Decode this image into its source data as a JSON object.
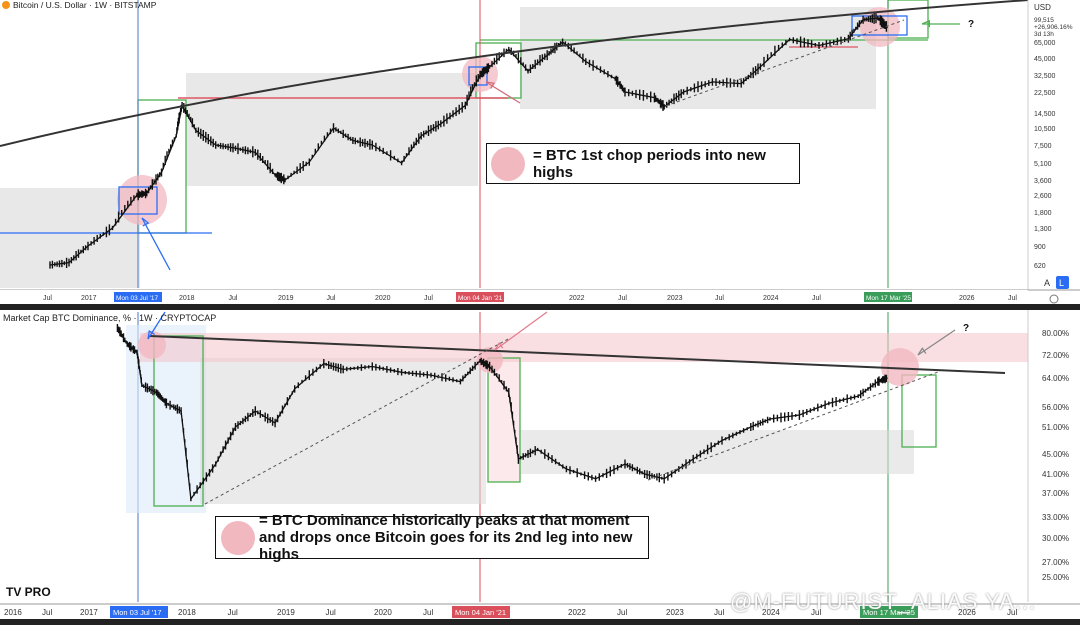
{
  "top_panel": {
    "legend": "Bitcoin / U.S. Dollar · 1W · BITSTAMP",
    "currency": "USD",
    "price_readout": [
      "99,515",
      "+26,906.16%",
      "3d 13h"
    ],
    "question_mark": "?",
    "auto_button": "A",
    "log_button": "L",
    "note": "= BTC 1st chop periods into new highs"
  },
  "bottom_panel": {
    "legend": "Market Cap BTC Dominance, % · 1W · CRYPTOCAP",
    "question_mark": "?",
    "note_line1": "= BTC Dominance historically peaks at that moment",
    "note_line2": "and drops once Bitcoin goes for its 2nd leg into new highs"
  },
  "bottom_toolbar": {
    "logo": "TV PRO"
  },
  "watermark": "@M-FUTURIST_ALIAS YA...",
  "colors": {
    "candle": "#111111",
    "trendline": "#333333",
    "range_box": "#d9d9d9",
    "red_line": "#e05565",
    "blue_line": "#2a6df4",
    "green_box": "#4caf50",
    "pink_zone": "#f4c3cb",
    "highlight_circle": "#f2b8c0",
    "vline_blue": "#4a78c8",
    "vline_red": "#d94f5c",
    "vline_green": "#3a9e5a"
  },
  "chart_data": [
    {
      "type": "line",
      "title": "Bitcoin / U.S. Dollar · 1W · BITSTAMP",
      "scale": "log",
      "y_tick_labels": [
        "65,000",
        "45,000",
        "32,500",
        "22,500",
        "14,500",
        "10,500",
        "7,500",
        "5,100",
        "3,600",
        "2,600",
        "1,800",
        "1,300",
        "900",
        "620"
      ],
      "x_tick_labels": [
        "Jul",
        "2017",
        "2018",
        "Jul",
        "2019",
        "Jul",
        "2020",
        "Jul",
        "2022",
        "Jul",
        "2023",
        "Jul",
        "2024",
        "Jul",
        "2026",
        "Jul"
      ],
      "axis_date_labels": [
        "Mon 03 Jul '17",
        "Mon 04 Jan '21",
        "Mon 17 Mar '25"
      ],
      "x": [
        2016.5,
        2016.75,
        2017.0,
        2017.25,
        2017.5,
        2017.6,
        2017.75,
        2017.9,
        2017.96,
        2018.1,
        2018.3,
        2018.5,
        2018.7,
        2018.9,
        2019.0,
        2019.25,
        2019.5,
        2019.7,
        2019.9,
        2020.2,
        2020.4,
        2020.6,
        2020.85,
        2021.0,
        2021.1,
        2021.3,
        2021.5,
        2021.7,
        2021.86,
        2022.1,
        2022.4,
        2022.5,
        2022.8,
        2022.9,
        2023.1,
        2023.4,
        2023.7,
        2023.9,
        2024.2,
        2024.5,
        2024.8,
        2024.95,
        2025.1,
        2025.2
      ],
      "y": [
        620,
        650,
        900,
        1300,
        2600,
        2700,
        4200,
        9000,
        17000,
        10000,
        7500,
        7000,
        6400,
        4000,
        3600,
        5200,
        10500,
        8200,
        7500,
        5100,
        9000,
        11500,
        17000,
        32500,
        38000,
        55000,
        35000,
        48000,
        65000,
        42000,
        30000,
        22500,
        20000,
        16500,
        22500,
        28000,
        27000,
        38000,
        68000,
        60000,
        69000,
        97000,
        100000,
        84000
      ]
    },
    {
      "type": "line",
      "title": "Market Cap BTC Dominance, % · 1W · CRYPTOCAP",
      "y_tick_labels": [
        "80.00%",
        "72.00%",
        "64.00%",
        "56.00%",
        "51.00%",
        "45.00%",
        "41.00%",
        "37.00%",
        "33.00%",
        "30.00%",
        "27.00%",
        "25.00%"
      ],
      "x_tick_labels": [
        "2016",
        "Jul",
        "2017",
        "2018",
        "Jul",
        "2019",
        "Jul",
        "2020",
        "Jul",
        "2022",
        "Jul",
        "2023",
        "Jul",
        "2024",
        "Jul",
        "2026",
        "Jul"
      ],
      "axis_date_labels": [
        "Mon 03 Jul '17",
        "Mon 04 Jan '21",
        "Mon 17 Mar '25"
      ],
      "x": [
        2017.3,
        2017.4,
        2017.5,
        2017.55,
        2017.7,
        2017.8,
        2017.95,
        2018.05,
        2018.3,
        2018.5,
        2018.7,
        2018.9,
        2019.1,
        2019.4,
        2019.6,
        2019.9,
        2020.2,
        2020.5,
        2020.8,
        2021.0,
        2021.1,
        2021.3,
        2021.4,
        2021.6,
        2021.9,
        2022.2,
        2022.5,
        2022.7,
        2022.9,
        2023.2,
        2023.5,
        2023.8,
        2024.0,
        2024.3,
        2024.6,
        2024.9,
        2025.1,
        2025.2
      ],
      "y": [
        82,
        76,
        73,
        62,
        60,
        57,
        55,
        36,
        43,
        51,
        55,
        52,
        61,
        69,
        67,
        68,
        66,
        65,
        63,
        70,
        68,
        60,
        44,
        46,
        42,
        40,
        43,
        41,
        40,
        44,
        48,
        51,
        53,
        54,
        57,
        59,
        63,
        64
      ]
    }
  ]
}
